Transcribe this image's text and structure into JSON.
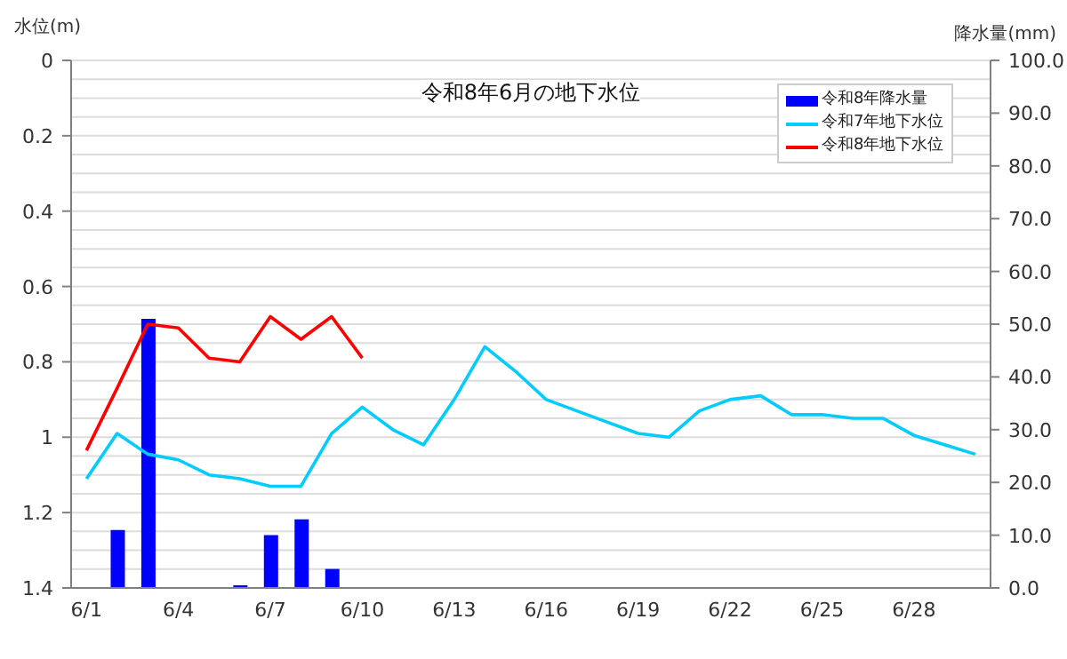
{
  "chart_data": {
    "type": "line",
    "title": "令和8年6月の地下水位",
    "ylabel": "水位(m)",
    "y2label": "降水量(mm)",
    "categories": [
      "6/1",
      null,
      null,
      "6/4",
      null,
      null,
      "6/7",
      null,
      null,
      "6/10",
      null,
      null,
      "6/13",
      null,
      null,
      "6/16",
      null,
      null,
      "6/19",
      null,
      null,
      "6/22",
      null,
      null,
      "6/25",
      null,
      null,
      "6/28",
      null,
      null
    ],
    "series": [
      {
        "name": "令和8年降水量",
        "type": "bar",
        "axis": "y2",
        "color": "#0000ff",
        "values": [
          0,
          11,
          51,
          0,
          0,
          0.5,
          10,
          13,
          3.6,
          0,
          0,
          0,
          0,
          0,
          0,
          0,
          0,
          0,
          0,
          0,
          0,
          0,
          0,
          0,
          0,
          0,
          0,
          0,
          0,
          0
        ]
      },
      {
        "name": "令和7年地下水位",
        "color": "#00ccff",
        "values": [
          1.11,
          0.99,
          1.045,
          1.06,
          1.1,
          1.11,
          1.13,
          1.13,
          0.99,
          0.92,
          0.98,
          1.02,
          0.9,
          0.76,
          0.825,
          0.9,
          0.93,
          0.96,
          0.99,
          1.0,
          0.93,
          0.9,
          0.89,
          0.94,
          0.94,
          0.95,
          0.95,
          0.995,
          1.02,
          1.045
        ]
      },
      {
        "name": "令和8年地下水位",
        "color": "#ff0000",
        "values": [
          1.035,
          0.87,
          0.7,
          0.71,
          0.79,
          0.8,
          0.68,
          0.74,
          0.68,
          0.79,
          null,
          null,
          null,
          null,
          null,
          null,
          null,
          null,
          null,
          null,
          null,
          null,
          null,
          null,
          null,
          null,
          null,
          null,
          null,
          null
        ]
      }
    ],
    "ylim": [
      1.4,
      0
    ],
    "yticks": [
      0,
      {
        "value": 0.05,
        "label": null
      },
      {
        "value": 0.1,
        "label": null
      },
      {
        "value": 0.15,
        "label": null
      },
      0.2,
      {
        "value": 0.25,
        "label": null
      },
      {
        "value": 0.3,
        "label": null
      },
      {
        "value": 0.35,
        "label": null
      },
      0.4,
      {
        "value": 0.45,
        "label": null
      },
      {
        "value": 0.5,
        "label": null
      },
      {
        "value": 0.55,
        "label": null
      },
      0.6,
      {
        "value": 0.65,
        "label": null
      },
      {
        "value": 0.7,
        "label": null
      },
      {
        "value": 0.75,
        "label": null
      },
      0.8,
      {
        "value": 0.85,
        "label": null
      },
      {
        "value": 0.9,
        "label": null
      },
      {
        "value": 0.95,
        "label": null
      },
      1,
      {
        "value": 1.05,
        "label": null
      },
      {
        "value": 1.1,
        "label": null
      },
      {
        "value": 1.15,
        "label": null
      },
      1.2,
      {
        "value": 1.25,
        "label": null
      },
      {
        "value": 1.3,
        "label": null
      },
      {
        "value": 1.35,
        "label": null
      },
      1.4
    ],
    "y2lim": [
      0,
      100
    ],
    "y2ticks": [
      {
        "value": 0,
        "label": "0.0"
      },
      {
        "value": 10,
        "label": "10.0"
      },
      {
        "value": 20,
        "label": "20.0"
      },
      {
        "value": 30,
        "label": "30.0"
      },
      {
        "value": 40,
        "label": "40.0"
      },
      {
        "value": 50,
        "label": "50.0"
      },
      {
        "value": 60,
        "label": "60.0"
      },
      {
        "value": 70,
        "label": "70.0"
      },
      {
        "value": 80,
        "label": "80.0"
      },
      {
        "value": 90,
        "label": "90.0"
      },
      {
        "value": 100,
        "label": "100.0"
      }
    ],
    "grid": "y",
    "legend": "top right",
    "marker": "none",
    "line_style": "solid"
  }
}
